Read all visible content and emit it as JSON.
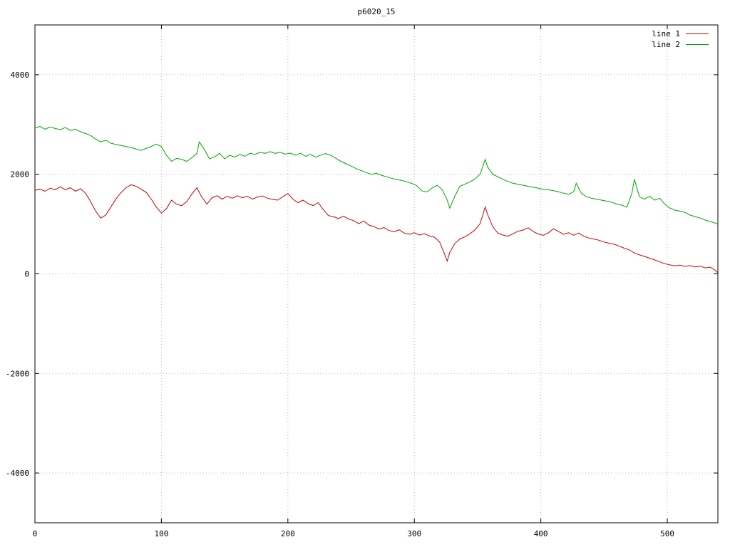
{
  "title": "p6020_15",
  "chart_data": {
    "type": "line",
    "title": "p6020_15",
    "xlabel": "",
    "ylabel": "",
    "xlim": [
      0,
      540
    ],
    "ylim": [
      -5000,
      5000
    ],
    "xticks": [
      0,
      100,
      200,
      300,
      400,
      500
    ],
    "yticks": [
      -4000,
      -2000,
      0,
      2000,
      4000
    ],
    "grid": true,
    "grid_color": "#b8b8b8",
    "border_color": "#000000",
    "legend_position": "top-right-inside",
    "series": [
      {
        "name": "line 1",
        "color": "#cc0000",
        "points": [
          [
            0,
            1680
          ],
          [
            4,
            1700
          ],
          [
            8,
            1660
          ],
          [
            12,
            1720
          ],
          [
            16,
            1690
          ],
          [
            20,
            1750
          ],
          [
            24,
            1690
          ],
          [
            28,
            1730
          ],
          [
            32,
            1660
          ],
          [
            36,
            1710
          ],
          [
            40,
            1620
          ],
          [
            44,
            1450
          ],
          [
            48,
            1260
          ],
          [
            52,
            1120
          ],
          [
            56,
            1180
          ],
          [
            60,
            1340
          ],
          [
            64,
            1500
          ],
          [
            68,
            1630
          ],
          [
            72,
            1730
          ],
          [
            76,
            1790
          ],
          [
            80,
            1760
          ],
          [
            84,
            1700
          ],
          [
            88,
            1640
          ],
          [
            92,
            1500
          ],
          [
            96,
            1340
          ],
          [
            100,
            1220
          ],
          [
            104,
            1310
          ],
          [
            108,
            1480
          ],
          [
            112,
            1400
          ],
          [
            116,
            1370
          ],
          [
            120,
            1450
          ],
          [
            124,
            1600
          ],
          [
            128,
            1730
          ],
          [
            132,
            1540
          ],
          [
            136,
            1400
          ],
          [
            140,
            1530
          ],
          [
            144,
            1570
          ],
          [
            148,
            1500
          ],
          [
            152,
            1560
          ],
          [
            156,
            1520
          ],
          [
            160,
            1570
          ],
          [
            164,
            1530
          ],
          [
            168,
            1560
          ],
          [
            172,
            1500
          ],
          [
            176,
            1545
          ],
          [
            180,
            1565
          ],
          [
            184,
            1520
          ],
          [
            188,
            1495
          ],
          [
            192,
            1480
          ],
          [
            196,
            1550
          ],
          [
            200,
            1610
          ],
          [
            204,
            1500
          ],
          [
            208,
            1430
          ],
          [
            212,
            1480
          ],
          [
            216,
            1410
          ],
          [
            220,
            1370
          ],
          [
            224,
            1430
          ],
          [
            228,
            1290
          ],
          [
            232,
            1170
          ],
          [
            236,
            1150
          ],
          [
            240,
            1110
          ],
          [
            244,
            1160
          ],
          [
            248,
            1100
          ],
          [
            252,
            1070
          ],
          [
            256,
            1010
          ],
          [
            260,
            1060
          ],
          [
            264,
            980
          ],
          [
            268,
            950
          ],
          [
            272,
            900
          ],
          [
            276,
            930
          ],
          [
            280,
            870
          ],
          [
            284,
            845
          ],
          [
            288,
            885
          ],
          [
            292,
            820
          ],
          [
            296,
            795
          ],
          [
            300,
            825
          ],
          [
            304,
            780
          ],
          [
            308,
            805
          ],
          [
            312,
            760
          ],
          [
            316,
            735
          ],
          [
            320,
            640
          ],
          [
            324,
            390
          ],
          [
            326,
            255
          ],
          [
            328,
            430
          ],
          [
            332,
            610
          ],
          [
            336,
            700
          ],
          [
            340,
            745
          ],
          [
            344,
            805
          ],
          [
            348,
            885
          ],
          [
            352,
            1010
          ],
          [
            356,
            1345
          ],
          [
            358,
            1190
          ],
          [
            362,
            945
          ],
          [
            366,
            820
          ],
          [
            370,
            780
          ],
          [
            374,
            755
          ],
          [
            378,
            805
          ],
          [
            382,
            855
          ],
          [
            386,
            880
          ],
          [
            390,
            925
          ],
          [
            394,
            850
          ],
          [
            398,
            800
          ],
          [
            402,
            775
          ],
          [
            406,
            825
          ],
          [
            410,
            905
          ],
          [
            414,
            850
          ],
          [
            418,
            795
          ],
          [
            422,
            825
          ],
          [
            426,
            775
          ],
          [
            430,
            820
          ],
          [
            434,
            755
          ],
          [
            438,
            720
          ],
          [
            442,
            700
          ],
          [
            446,
            675
          ],
          [
            450,
            640
          ],
          [
            454,
            615
          ],
          [
            458,
            595
          ],
          [
            462,
            555
          ],
          [
            466,
            515
          ],
          [
            470,
            480
          ],
          [
            474,
            420
          ],
          [
            478,
            380
          ],
          [
            482,
            350
          ],
          [
            486,
            315
          ],
          [
            490,
            280
          ],
          [
            494,
            240
          ],
          [
            498,
            205
          ],
          [
            502,
            180
          ],
          [
            506,
            160
          ],
          [
            510,
            175
          ],
          [
            514,
            150
          ],
          [
            518,
            165
          ],
          [
            522,
            140
          ],
          [
            526,
            155
          ],
          [
            530,
            120
          ],
          [
            534,
            135
          ],
          [
            538,
            70
          ],
          [
            540,
            20
          ]
        ]
      },
      {
        "name": "line 2",
        "color": "#00a800",
        "points": [
          [
            0,
            2930
          ],
          [
            4,
            2960
          ],
          [
            8,
            2905
          ],
          [
            12,
            2950
          ],
          [
            16,
            2920
          ],
          [
            20,
            2895
          ],
          [
            24,
            2940
          ],
          [
            28,
            2880
          ],
          [
            32,
            2905
          ],
          [
            36,
            2855
          ],
          [
            40,
            2820
          ],
          [
            44,
            2780
          ],
          [
            48,
            2705
          ],
          [
            52,
            2650
          ],
          [
            56,
            2685
          ],
          [
            60,
            2625
          ],
          [
            64,
            2600
          ],
          [
            68,
            2580
          ],
          [
            72,
            2560
          ],
          [
            76,
            2540
          ],
          [
            80,
            2505
          ],
          [
            84,
            2480
          ],
          [
            88,
            2520
          ],
          [
            92,
            2560
          ],
          [
            96,
            2605
          ],
          [
            100,
            2560
          ],
          [
            104,
            2380
          ],
          [
            108,
            2260
          ],
          [
            112,
            2320
          ],
          [
            116,
            2300
          ],
          [
            120,
            2260
          ],
          [
            124,
            2330
          ],
          [
            128,
            2420
          ],
          [
            130,
            2650
          ],
          [
            134,
            2500
          ],
          [
            138,
            2310
          ],
          [
            142,
            2350
          ],
          [
            146,
            2420
          ],
          [
            150,
            2310
          ],
          [
            154,
            2380
          ],
          [
            158,
            2345
          ],
          [
            162,
            2400
          ],
          [
            166,
            2360
          ],
          [
            170,
            2420
          ],
          [
            174,
            2400
          ],
          [
            178,
            2440
          ],
          [
            182,
            2420
          ],
          [
            186,
            2455
          ],
          [
            190,
            2420
          ],
          [
            194,
            2440
          ],
          [
            198,
            2405
          ],
          [
            202,
            2425
          ],
          [
            206,
            2385
          ],
          [
            210,
            2420
          ],
          [
            214,
            2360
          ],
          [
            218,
            2400
          ],
          [
            222,
            2345
          ],
          [
            226,
            2385
          ],
          [
            230,
            2415
          ],
          [
            234,
            2380
          ],
          [
            238,
            2320
          ],
          [
            242,
            2260
          ],
          [
            246,
            2210
          ],
          [
            250,
            2165
          ],
          [
            254,
            2115
          ],
          [
            258,
            2075
          ],
          [
            262,
            2035
          ],
          [
            266,
            2000
          ],
          [
            270,
            2020
          ],
          [
            274,
            1980
          ],
          [
            278,
            1950
          ],
          [
            282,
            1920
          ],
          [
            286,
            1895
          ],
          [
            290,
            1875
          ],
          [
            294,
            1850
          ],
          [
            298,
            1815
          ],
          [
            302,
            1770
          ],
          [
            306,
            1665
          ],
          [
            310,
            1645
          ],
          [
            314,
            1725
          ],
          [
            318,
            1780
          ],
          [
            322,
            1690
          ],
          [
            326,
            1480
          ],
          [
            328,
            1320
          ],
          [
            332,
            1560
          ],
          [
            336,
            1760
          ],
          [
            340,
            1800
          ],
          [
            344,
            1850
          ],
          [
            348,
            1905
          ],
          [
            352,
            2005
          ],
          [
            356,
            2300
          ],
          [
            358,
            2145
          ],
          [
            362,
            2000
          ],
          [
            366,
            1950
          ],
          [
            370,
            1900
          ],
          [
            374,
            1855
          ],
          [
            378,
            1820
          ],
          [
            382,
            1800
          ],
          [
            386,
            1780
          ],
          [
            390,
            1760
          ],
          [
            394,
            1740
          ],
          [
            398,
            1720
          ],
          [
            402,
            1700
          ],
          [
            406,
            1690
          ],
          [
            410,
            1670
          ],
          [
            414,
            1650
          ],
          [
            418,
            1620
          ],
          [
            422,
            1600
          ],
          [
            426,
            1650
          ],
          [
            428,
            1820
          ],
          [
            432,
            1620
          ],
          [
            436,
            1550
          ],
          [
            440,
            1520
          ],
          [
            444,
            1500
          ],
          [
            448,
            1480
          ],
          [
            452,
            1460
          ],
          [
            456,
            1440
          ],
          [
            460,
            1400
          ],
          [
            464,
            1380
          ],
          [
            468,
            1340
          ],
          [
            472,
            1620
          ],
          [
            474,
            1900
          ],
          [
            478,
            1550
          ],
          [
            482,
            1500
          ],
          [
            486,
            1560
          ],
          [
            490,
            1480
          ],
          [
            494,
            1520
          ],
          [
            498,
            1400
          ],
          [
            502,
            1320
          ],
          [
            506,
            1280
          ],
          [
            510,
            1260
          ],
          [
            514,
            1235
          ],
          [
            518,
            1180
          ],
          [
            522,
            1150
          ],
          [
            526,
            1120
          ],
          [
            530,
            1080
          ],
          [
            534,
            1050
          ],
          [
            538,
            1020
          ],
          [
            540,
            1000
          ]
        ]
      }
    ]
  }
}
